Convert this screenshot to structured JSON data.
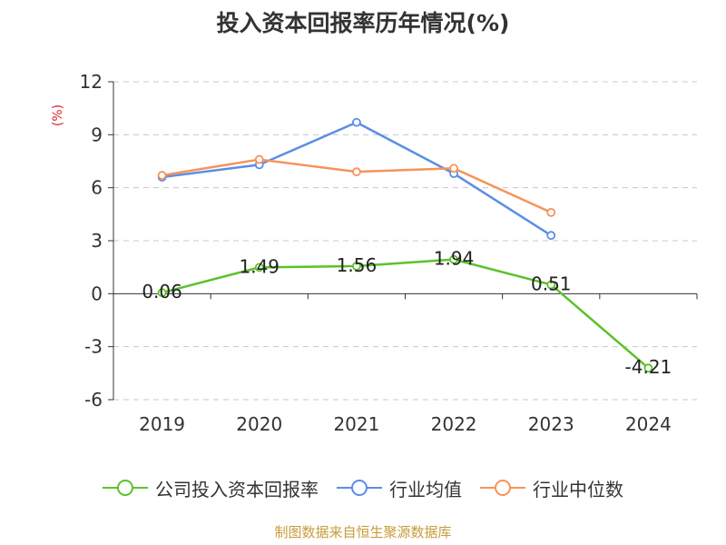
{
  "title": "投入资本回报率历年情况(%)",
  "source": "制图数据来自恒生聚源数据库",
  "chart_data": {
    "type": "line",
    "categories": [
      "2019",
      "2020",
      "2021",
      "2022",
      "2023",
      "2024"
    ],
    "ylabel": "(%)",
    "ylim": [
      -6,
      12
    ],
    "yticks": [
      "12",
      "9",
      "6",
      "3",
      "0",
      "-3",
      "-6"
    ],
    "grid": true,
    "legend_position": "bottom",
    "series": [
      {
        "name": "公司投入资本回报率",
        "color": "#5cc22a",
        "values": [
          0.06,
          1.49,
          1.56,
          1.94,
          0.51,
          -4.21
        ],
        "labels": [
          "0.06",
          "1.49",
          "1.56",
          "1.94",
          "0.51",
          "-4.21"
        ]
      },
      {
        "name": "行业均值",
        "color": "#5b8ee6",
        "values": [
          6.6,
          7.3,
          9.7,
          6.8,
          3.3,
          null
        ]
      },
      {
        "name": "行业中位数",
        "color": "#f79359",
        "values": [
          6.7,
          7.6,
          6.9,
          7.1,
          4.6,
          null
        ]
      }
    ]
  }
}
